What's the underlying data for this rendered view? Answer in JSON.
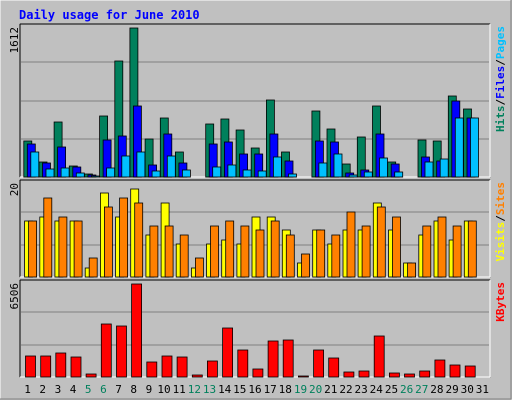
{
  "title": "Daily usage for June 2010",
  "colors": {
    "background": "#c0c0c0",
    "grid": "#808080",
    "title": "#0000ff",
    "hits": "#00805c",
    "files": "#0000ff",
    "pages": "#00c0ff",
    "visits": "#ffff00",
    "sites": "#ff8000",
    "kbytes": "#ff0000",
    "weekend": "#00805c",
    "weekday": "#000000"
  },
  "chart_data": [
    {
      "type": "bar",
      "name": "hits-files-pages",
      "ymax_label": "1612",
      "ymax": 1612,
      "legend": [
        {
          "text": "Hits",
          "color": "hits"
        },
        {
          "text": "/",
          "color": "weekday"
        },
        {
          "text": "Files",
          "color": "files"
        },
        {
          "text": "/",
          "color": "weekday"
        },
        {
          "text": "Pages",
          "color": "pages"
        }
      ],
      "days": [
        "1",
        "2",
        "3",
        "4",
        "5",
        "6",
        "7",
        "8",
        "9",
        "10",
        "11",
        "12",
        "13",
        "14",
        "15",
        "16",
        "17",
        "18",
        "19",
        "20",
        "21",
        "22",
        "23",
        "24",
        "25",
        "26",
        "27",
        "28",
        "29",
        "30",
        "31"
      ],
      "weekend": [
        5,
        6,
        12,
        13,
        19,
        20,
        26,
        27
      ],
      "series": [
        {
          "name": "Hits",
          "color": "hits",
          "values": [
            390,
            160,
            590,
            120,
            30,
            660,
            1250,
            1612,
            410,
            640,
            270,
            0,
            570,
            630,
            510,
            310,
            830,
            270,
            0,
            710,
            520,
            140,
            430,
            770,
            160,
            0,
            400,
            390,
            880,
            740,
            0
          ]
        },
        {
          "name": "Files",
          "color": "files",
          "values": [
            360,
            150,
            320,
            110,
            20,
            400,
            440,
            770,
            130,
            470,
            150,
            0,
            360,
            380,
            250,
            250,
            460,
            170,
            0,
            390,
            380,
            40,
            80,
            460,
            140,
            0,
            220,
            170,
            820,
            640,
            0
          ]
        },
        {
          "name": "Pages",
          "color": "pages",
          "values": [
            270,
            90,
            100,
            40,
            10,
            100,
            230,
            270,
            70,
            230,
            80,
            0,
            110,
            130,
            80,
            70,
            220,
            30,
            0,
            150,
            250,
            20,
            50,
            210,
            50,
            0,
            160,
            190,
            640,
            640,
            0
          ]
        }
      ]
    },
    {
      "type": "bar",
      "name": "visits-sites",
      "ymax_label": "20",
      "ymax": 20,
      "legend": [
        {
          "text": "Visits",
          "color": "visits"
        },
        {
          "text": "/",
          "color": "weekday"
        },
        {
          "text": "Sites",
          "color": "sites"
        }
      ],
      "series": [
        {
          "name": "Visits",
          "color": "visits",
          "values": [
            12,
            13,
            12,
            12,
            2,
            18,
            13,
            19,
            9,
            16,
            7,
            2,
            7,
            8,
            7,
            13,
            13,
            10,
            3,
            10,
            7,
            10,
            10,
            16,
            10,
            3,
            9,
            12,
            8,
            12,
            0
          ]
        },
        {
          "name": "Sites",
          "color": "sites",
          "values": [
            12,
            17,
            13,
            12,
            4,
            15,
            17,
            16,
            11,
            11,
            9,
            4,
            11,
            12,
            11,
            10,
            12,
            9,
            5,
            10,
            9,
            14,
            11,
            15,
            13,
            3,
            11,
            13,
            11,
            12,
            0
          ]
        }
      ]
    },
    {
      "type": "bar",
      "name": "kbytes",
      "ymax_label": "6506",
      "ymax": 6506,
      "legend": [
        {
          "text": "KBytes",
          "color": "kbytes"
        }
      ],
      "series": [
        {
          "name": "KBytes",
          "color": "kbytes",
          "values": [
            1500,
            1500,
            1700,
            1400,
            200,
            3700,
            3600,
            6506,
            1050,
            1500,
            1400,
            150,
            1100,
            3400,
            1900,
            550,
            2500,
            2600,
            30,
            1900,
            1350,
            350,
            400,
            2900,
            300,
            200,
            400,
            1200,
            850,
            750,
            0
          ]
        }
      ]
    }
  ]
}
